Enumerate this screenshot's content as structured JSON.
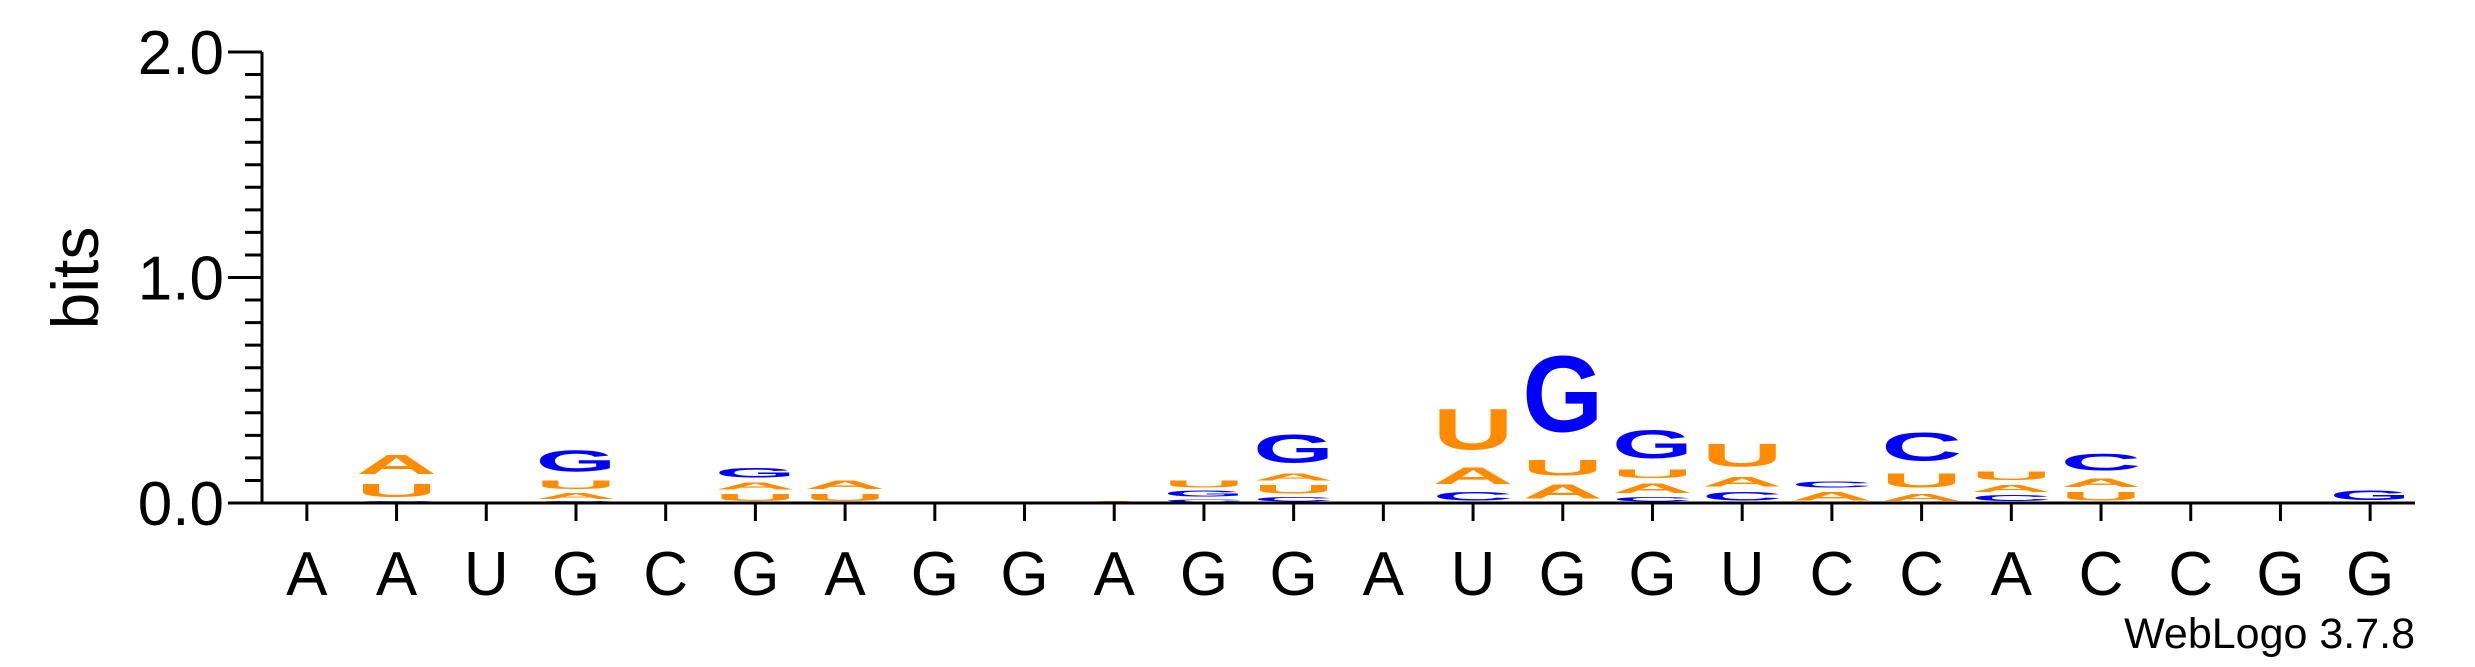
{
  "chart_data": {
    "type": "sequence-logo",
    "ylabel": "bits",
    "ylim": [
      0,
      2
    ],
    "yticks": [
      {
        "value": 0,
        "label": "0.0"
      },
      {
        "value": 1,
        "label": "1.0"
      },
      {
        "value": 2,
        "label": "2.0"
      }
    ],
    "colors": {
      "A": "#ff8c00",
      "U": "#ff8c00",
      "G": "#0000ff",
      "C": "#0000ff"
    },
    "positions": [
      {
        "label": "A",
        "stack": []
      },
      {
        "label": "A",
        "stack": [
          {
            "base": "C",
            "bits": 0.01
          },
          {
            "base": "U",
            "bits": 0.09
          },
          {
            "base": "A",
            "bits": 0.14
          }
        ]
      },
      {
        "label": "U",
        "stack": []
      },
      {
        "label": "G",
        "stack": [
          {
            "base": "C",
            "bits": 0.01
          },
          {
            "base": "A",
            "bits": 0.04
          },
          {
            "base": "U",
            "bits": 0.06
          },
          {
            "base": "G",
            "bits": 0.15
          }
        ]
      },
      {
        "label": "C",
        "stack": []
      },
      {
        "label": "G",
        "stack": [
          {
            "base": "U",
            "bits": 0.05
          },
          {
            "base": "A",
            "bits": 0.05
          },
          {
            "base": "G",
            "bits": 0.07
          }
        ]
      },
      {
        "label": "A",
        "stack": [
          {
            "base": "U",
            "bits": 0.05
          },
          {
            "base": "A",
            "bits": 0.06
          }
        ]
      },
      {
        "label": "G",
        "stack": []
      },
      {
        "label": "G",
        "stack": []
      },
      {
        "label": "A",
        "stack": [
          {
            "base": "A",
            "bits": 0.01
          }
        ]
      },
      {
        "label": "G",
        "stack": [
          {
            "base": "C",
            "bits": 0.02
          },
          {
            "base": "G",
            "bits": 0.04
          },
          {
            "base": "U",
            "bits": 0.05
          }
        ]
      },
      {
        "label": "G",
        "stack": [
          {
            "base": "C",
            "bits": 0.03
          },
          {
            "base": "U",
            "bits": 0.06
          },
          {
            "base": "A",
            "bits": 0.05
          },
          {
            "base": "G",
            "bits": 0.2
          }
        ]
      },
      {
        "label": "A",
        "stack": []
      },
      {
        "label": "U",
        "stack": [
          {
            "base": "C",
            "bits": 0.06
          },
          {
            "base": "A",
            "bits": 0.12
          },
          {
            "base": "U",
            "bits": 0.29
          }
        ]
      },
      {
        "label": "G",
        "stack": [
          {
            "base": "A",
            "bits": 0.1
          },
          {
            "base": "U",
            "bits": 0.11
          },
          {
            "base": "G",
            "bits": 0.54
          }
        ]
      },
      {
        "label": "G",
        "stack": [
          {
            "base": "C",
            "bits": 0.03
          },
          {
            "base": "A",
            "bits": 0.07
          },
          {
            "base": "U",
            "bits": 0.06
          },
          {
            "base": "G",
            "bits": 0.2
          }
        ]
      },
      {
        "label": "U",
        "stack": [
          {
            "base": "C",
            "bits": 0.06
          },
          {
            "base": "A",
            "bits": 0.07
          },
          {
            "base": "U",
            "bits": 0.16
          }
        ]
      },
      {
        "label": "C",
        "stack": [
          {
            "base": "A",
            "bits": 0.06
          },
          {
            "base": "C",
            "bits": 0.04
          }
        ]
      },
      {
        "label": "C",
        "stack": [
          {
            "base": "A",
            "bits": 0.05
          },
          {
            "base": "U",
            "bits": 0.1
          },
          {
            "base": "C",
            "bits": 0.2
          }
        ]
      },
      {
        "label": "A",
        "stack": [
          {
            "base": "C",
            "bits": 0.04
          },
          {
            "base": "A",
            "bits": 0.05
          },
          {
            "base": "U",
            "bits": 0.06
          }
        ]
      },
      {
        "label": "C",
        "stack": [
          {
            "base": "U",
            "bits": 0.06
          },
          {
            "base": "A",
            "bits": 0.06
          },
          {
            "base": "C",
            "bits": 0.12
          }
        ]
      },
      {
        "label": "C",
        "stack": []
      },
      {
        "label": "G",
        "stack": []
      },
      {
        "label": "G",
        "stack": [
          {
            "base": "G",
            "bits": 0.07
          }
        ]
      }
    ],
    "footer": "WebLogo 3.7.8"
  }
}
